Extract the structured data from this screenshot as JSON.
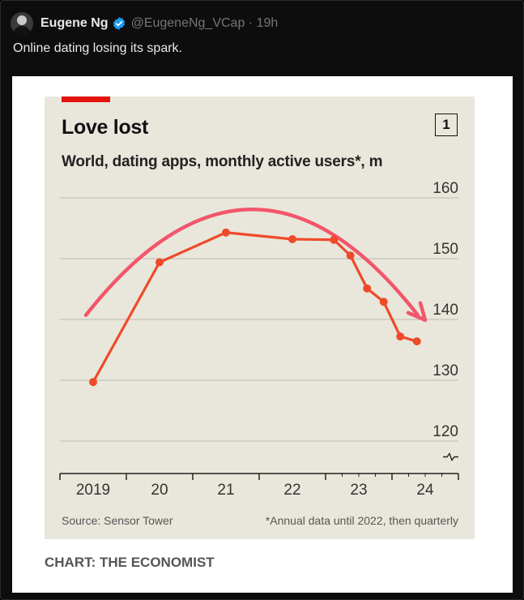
{
  "tweet": {
    "author_name": "Eugene Ng",
    "handle": "@EugeneNg_VCap",
    "time": "19h",
    "text": "Online dating losing its spark.",
    "verified_color": "#1d9bf0"
  },
  "chart": {
    "title": "Love lost",
    "subtitle": "World, dating apps, monthly active users*, m",
    "badge": "1",
    "source": "Source: Sensor Tower",
    "footnote": "*Annual data until 2022, then quarterly",
    "credit": "CHART: THE ECONOMIST",
    "accent_color": "#e3120b",
    "line_color": "#ef4a2a",
    "trend_color": "#f2566b"
  },
  "chart_data": {
    "type": "line",
    "title": "Love lost",
    "subtitle": "World, dating apps, monthly active users*, m",
    "xlabel": "",
    "ylabel": "",
    "x_tick_labels": [
      "2019",
      "20",
      "21",
      "22",
      "23",
      "24"
    ],
    "y_ticks": [
      120,
      130,
      140,
      150,
      160
    ],
    "ylim": [
      116,
      162
    ],
    "y_axis_broken": true,
    "grid": true,
    "series": [
      {
        "x": [
          2019.5,
          2020.5,
          2021.5,
          2022.5,
          2023.125,
          2023.375,
          2023.625,
          2023.875,
          2024.125,
          2024.375
        ],
        "values": [
          129.7,
          149.4,
          154.3,
          153.2,
          153.1,
          150.5,
          145.1,
          142.9,
          137.2,
          136.4
        ]
      }
    ],
    "annotations": [
      {
        "type": "trend-arrow",
        "description": "curved arrow showing rise then decline"
      }
    ],
    "source": "Source: Sensor Tower",
    "footnote": "*Annual data until 2022, then quarterly"
  }
}
